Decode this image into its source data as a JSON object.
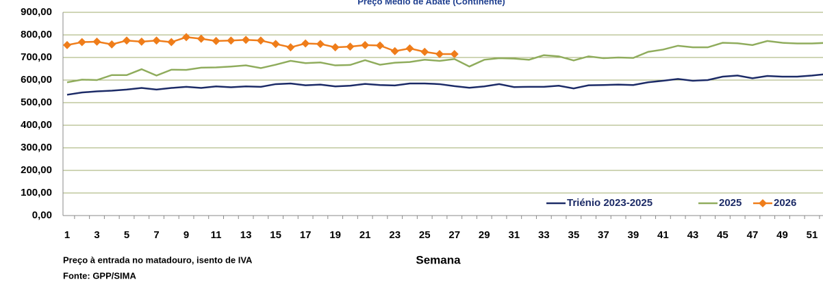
{
  "chart_data": {
    "type": "line",
    "title": "Preço Médio de Abate (Continente)",
    "x_label": "Semana",
    "notes": [
      "Preço à entrada no matadouro, isento de IVA",
      "Fonte: GPP/SIMA"
    ],
    "categories": [
      "1",
      null,
      "3",
      null,
      "5",
      null,
      "7",
      null,
      "9",
      null,
      "11",
      null,
      "13",
      null,
      "15",
      null,
      "17",
      null,
      "19",
      null,
      "21",
      null,
      "23",
      null,
      "25",
      null,
      "27",
      null,
      "29",
      null,
      "31",
      null,
      "33",
      null,
      "35",
      null,
      "37",
      null,
      "39",
      null,
      "41",
      null,
      "43",
      null,
      "45",
      null,
      "47",
      null,
      "49",
      null,
      "51",
      null
    ],
    "ylim": [
      0,
      900
    ],
    "yticks": [
      {
        "value": 0,
        "label": "0,00"
      },
      {
        "value": 100,
        "label": "100,00"
      },
      {
        "value": 200,
        "label": "200,00"
      },
      {
        "value": 300,
        "label": "300,00"
      },
      {
        "value": 400,
        "label": "400,00"
      },
      {
        "value": 500,
        "label": "500,00"
      },
      {
        "value": 600,
        "label": "600,00"
      },
      {
        "value": 700,
        "label": "700,00"
      },
      {
        "value": 800,
        "label": "800,00"
      },
      {
        "value": 900,
        "label": "900,00"
      }
    ],
    "grid": true,
    "legend": "bottom-right",
    "series": [
      {
        "name": "Triénio 2023-2025",
        "color": "#1b2a66",
        "values": [
          535,
          545,
          550,
          553,
          558,
          565,
          558,
          565,
          570,
          565,
          572,
          568,
          572,
          570,
          582,
          585,
          577,
          580,
          572,
          575,
          583,
          578,
          576,
          585,
          585,
          582,
          573,
          566,
          572,
          582,
          569,
          570,
          570,
          575,
          563,
          577,
          578,
          580,
          578,
          590,
          597,
          605,
          597,
          600,
          615,
          620,
          608,
          618,
          615,
          615,
          620,
          627
        ]
      },
      {
        "name": "2025",
        "color": "#8fac5c",
        "values": [
          590,
          602,
          600,
          622,
          622,
          648,
          620,
          646,
          645,
          655,
          656,
          660,
          665,
          653,
          668,
          685,
          675,
          678,
          665,
          667,
          688,
          668,
          677,
          680,
          690,
          685,
          693,
          660,
          690,
          697,
          695,
          690,
          710,
          705,
          687,
          705,
          697,
          700,
          698,
          725,
          735,
          752,
          745,
          745,
          765,
          763,
          755,
          773,
          765,
          762,
          762,
          765
        ]
      },
      {
        "name": "2026",
        "color": "#ef7d1a",
        "marker": "diamond",
        "values": [
          755,
          768,
          770,
          758,
          775,
          770,
          775,
          768,
          790,
          783,
          773,
          775,
          778,
          775,
          760,
          745,
          762,
          760,
          745,
          748,
          755,
          753,
          728,
          740,
          725,
          715,
          715,
          null,
          null,
          null,
          null,
          null,
          null,
          null,
          null,
          null,
          null,
          null,
          null,
          null,
          null,
          null,
          null,
          null,
          null,
          null,
          null,
          null,
          null,
          null,
          null,
          null
        ]
      }
    ]
  }
}
